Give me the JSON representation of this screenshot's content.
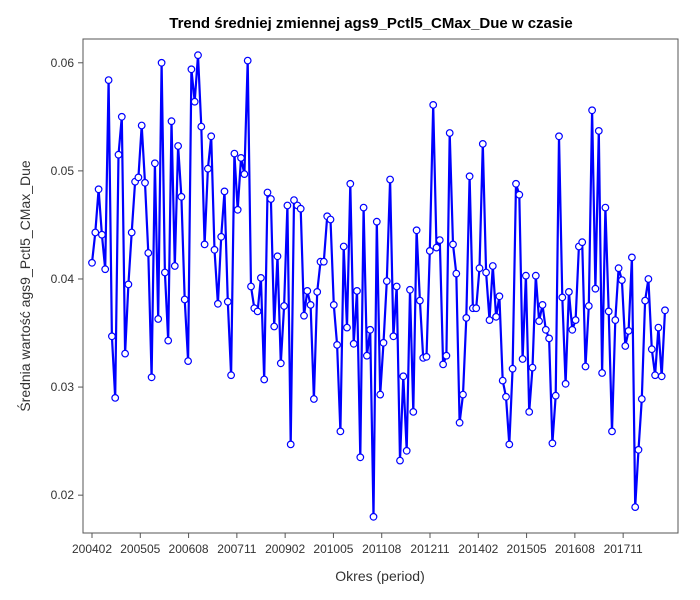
{
  "chart_data": {
    "type": "line",
    "title": "Trend średniej zmiennej ags9_Pctl5_CMax_Due w czasie",
    "xlabel": "Okres (period)",
    "ylabel": "Średnia wartość ags9_Pctl5_CMax_Due",
    "x_start": "200402",
    "x_end": "201812",
    "ylim": [
      0.0165,
      0.0622
    ],
    "x_ticks": [
      "200402",
      "200505",
      "200608",
      "200711",
      "200902",
      "201005",
      "201108",
      "201211",
      "201402",
      "201505",
      "201608",
      "201711"
    ],
    "y_ticks": [
      0.02,
      0.03,
      0.04,
      0.05,
      0.06
    ],
    "y_tick_labels": [
      "0.02",
      "0.03",
      "0.04",
      "0.05",
      "0.06"
    ],
    "grid": false,
    "legend": "none",
    "line_color": "#0000ff",
    "marker": "open-circle",
    "series": [
      {
        "values": [
          0.0415,
          0.0443,
          0.0483,
          0.0441,
          0.0409,
          0.0584,
          0.0347,
          0.029,
          0.0515,
          0.055,
          0.0331,
          0.0395,
          0.0443,
          0.049,
          0.0494,
          0.0542,
          0.0489,
          0.0424,
          0.0309,
          0.0507,
          0.0363,
          0.06,
          0.0406,
          0.0343,
          0.0546,
          0.0412,
          0.0523,
          0.0476,
          0.0381,
          0.0324,
          0.0594,
          0.0564,
          0.0607,
          0.0541,
          0.0432,
          0.0502,
          0.0532,
          0.0427,
          0.0377,
          0.0439,
          0.0481,
          0.0379,
          0.0311,
          0.0516,
          0.0464,
          0.0512,
          0.0497,
          0.0602,
          0.0393,
          0.0373,
          0.037,
          0.0401,
          0.0307,
          0.048,
          0.0474,
          0.0356,
          0.0421,
          0.0322,
          0.0375,
          0.0468,
          0.0247,
          0.0473,
          0.0468,
          0.0465,
          0.0366,
          0.0389,
          0.0376,
          0.0289,
          0.0388,
          0.0416,
          0.0416,
          0.0458,
          0.0455,
          0.0376,
          0.0339,
          0.0259,
          0.043,
          0.0355,
          0.0488,
          0.034,
          0.0389,
          0.0235,
          0.0466,
          0.0329,
          0.0353,
          0.018,
          0.0453,
          0.0293,
          0.0341,
          0.0398,
          0.0492,
          0.0347,
          0.0393,
          0.0232,
          0.031,
          0.0241,
          0.039,
          0.0277,
          0.0445,
          0.038,
          0.0327,
          0.0328,
          0.0426,
          0.0561,
          0.0429,
          0.0436,
          0.0321,
          0.0329,
          0.0535,
          0.0432,
          0.0405,
          0.0267,
          0.0293,
          0.0364,
          0.0495,
          0.0373,
          0.0373,
          0.041,
          0.0525,
          0.0406,
          0.0362,
          0.0412,
          0.0365,
          0.0384,
          0.0306,
          0.0291,
          0.0247,
          0.0317,
          0.0488,
          0.0478,
          0.0326,
          0.0403,
          0.0277,
          0.0318,
          0.0403,
          0.0361,
          0.0376,
          0.0353,
          0.0345,
          0.0248,
          0.0292,
          0.0532,
          0.0383,
          0.0303,
          0.0388,
          0.0353,
          0.0362,
          0.043,
          0.0434,
          0.0319,
          0.0375,
          0.0556,
          0.0391,
          0.0537,
          0.0313,
          0.0466,
          0.037,
          0.0259,
          0.0362,
          0.041,
          0.0399,
          0.0338,
          0.0352,
          0.042,
          0.0189,
          0.0242,
          0.0289,
          0.038,
          0.04,
          0.0335,
          0.0311,
          0.0355,
          0.031,
          0.0371
        ]
      }
    ]
  }
}
